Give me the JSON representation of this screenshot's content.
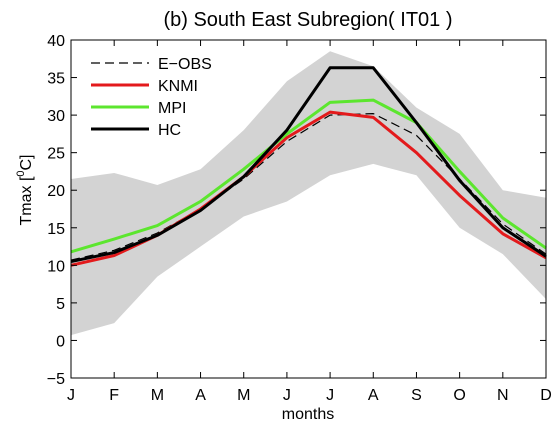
{
  "chart_data": {
    "type": "line",
    "title": "(b) South East Subregion( IT01 )",
    "xlabel": "months",
    "ylabel_base": "Tmax [",
    "ylabel_sup": "0",
    "ylabel_unit": "C]",
    "categories": [
      "J",
      "F",
      "M",
      "A",
      "M",
      "J",
      "J",
      "A",
      "S",
      "O",
      "N",
      "D"
    ],
    "ylim": [
      -5,
      40
    ],
    "yticks": [
      -5,
      0,
      5,
      10,
      15,
      20,
      25,
      30,
      35,
      40
    ],
    "grid": false,
    "legend_position": "top-left",
    "band": {
      "color": "#d3d3d3",
      "upper": [
        21.5,
        22.3,
        20.7,
        22.8,
        28.0,
        34.5,
        38.5,
        36.5,
        31.0,
        27.5,
        20.0,
        19.0
      ],
      "lower": [
        0.7,
        2.3,
        8.5,
        12.5,
        16.5,
        18.5,
        22.0,
        23.5,
        22.0,
        15.0,
        11.5,
        5.5
      ]
    },
    "series": [
      {
        "name": "E−OBS",
        "color": "#000000",
        "dash": true,
        "width": 1.2,
        "values": [
          10.7,
          12.0,
          14.3,
          17.5,
          21.5,
          26.5,
          30.0,
          30.2,
          27.3,
          21.5,
          15.5,
          11.5
        ]
      },
      {
        "name": "KNMI",
        "color": "#e31a1c",
        "dash": false,
        "width": 3,
        "values": [
          10.0,
          11.3,
          14.0,
          17.5,
          21.8,
          27.0,
          30.4,
          29.7,
          25.0,
          19.3,
          14.2,
          11.0
        ]
      },
      {
        "name": "MPI",
        "color": "#5ce62e",
        "dash": false,
        "width": 3,
        "values": [
          11.8,
          13.5,
          15.3,
          18.5,
          22.8,
          27.5,
          31.7,
          32.0,
          29.0,
          22.5,
          16.3,
          12.3
        ]
      },
      {
        "name": "HC",
        "color": "#000000",
        "dash": false,
        "width": 3,
        "values": [
          10.5,
          11.7,
          14.0,
          17.3,
          21.8,
          28.0,
          36.3,
          36.3,
          29.0,
          21.3,
          15.0,
          11.2
        ]
      }
    ]
  }
}
